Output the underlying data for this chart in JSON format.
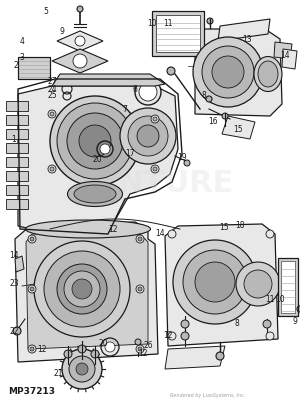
{
  "part_number": "MP37213",
  "watermark": "Rendered by LiaoSystems, Inc.",
  "bg_color": "#ffffff",
  "fig_width": 3.0,
  "fig_height": 4.04,
  "dpi": 100,
  "lc": "#1a1a1a",
  "gray1": "#e8e8e8",
  "gray2": "#d0d0d0",
  "gray3": "#b8b8b8",
  "gray4": "#a0a0a0",
  "gray5": "#888888"
}
